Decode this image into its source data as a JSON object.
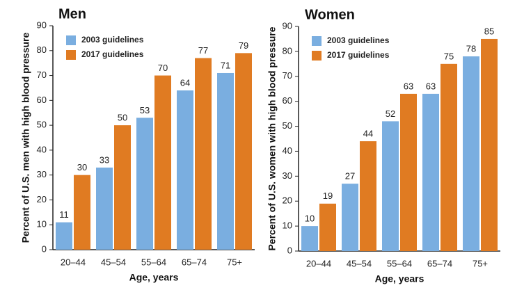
{
  "chart_data": [
    {
      "type": "bar",
      "title": "Men",
      "y_label": "Percent of U.S. men with high blood pressure",
      "x_label": "Age, years",
      "categories": [
        "20–44",
        "45–54",
        "55–64",
        "65–74",
        "75+"
      ],
      "series": [
        {
          "name": "2003 guidelines",
          "color": "#7aaee0",
          "values": [
            11,
            33,
            53,
            64,
            71
          ]
        },
        {
          "name": "2017 guidelines",
          "color": "#e07b22",
          "values": [
            30,
            50,
            70,
            77,
            79
          ]
        }
      ],
      "ylim": [
        0,
        90
      ],
      "yticks": [
        0,
        10,
        20,
        30,
        40,
        50,
        60,
        70,
        80,
        90
      ],
      "legend": "top-left"
    },
    {
      "type": "bar",
      "title": "Women",
      "y_label": "Percent of U.S. women with high blood pressure",
      "x_label": "Age, years",
      "categories": [
        "20–44",
        "45–54",
        "55–64",
        "65–74",
        "75+"
      ],
      "series": [
        {
          "name": "2003 guidelines",
          "color": "#7aaee0",
          "values": [
            10,
            27,
            52,
            63,
            78
          ]
        },
        {
          "name": "2017 guidelines",
          "color": "#e07b22",
          "values": [
            19,
            44,
            63,
            75,
            85
          ]
        }
      ],
      "ylim": [
        0,
        90
      ],
      "yticks": [
        0,
        10,
        20,
        30,
        40,
        50,
        60,
        70,
        80,
        90
      ],
      "legend": "top-left"
    }
  ]
}
